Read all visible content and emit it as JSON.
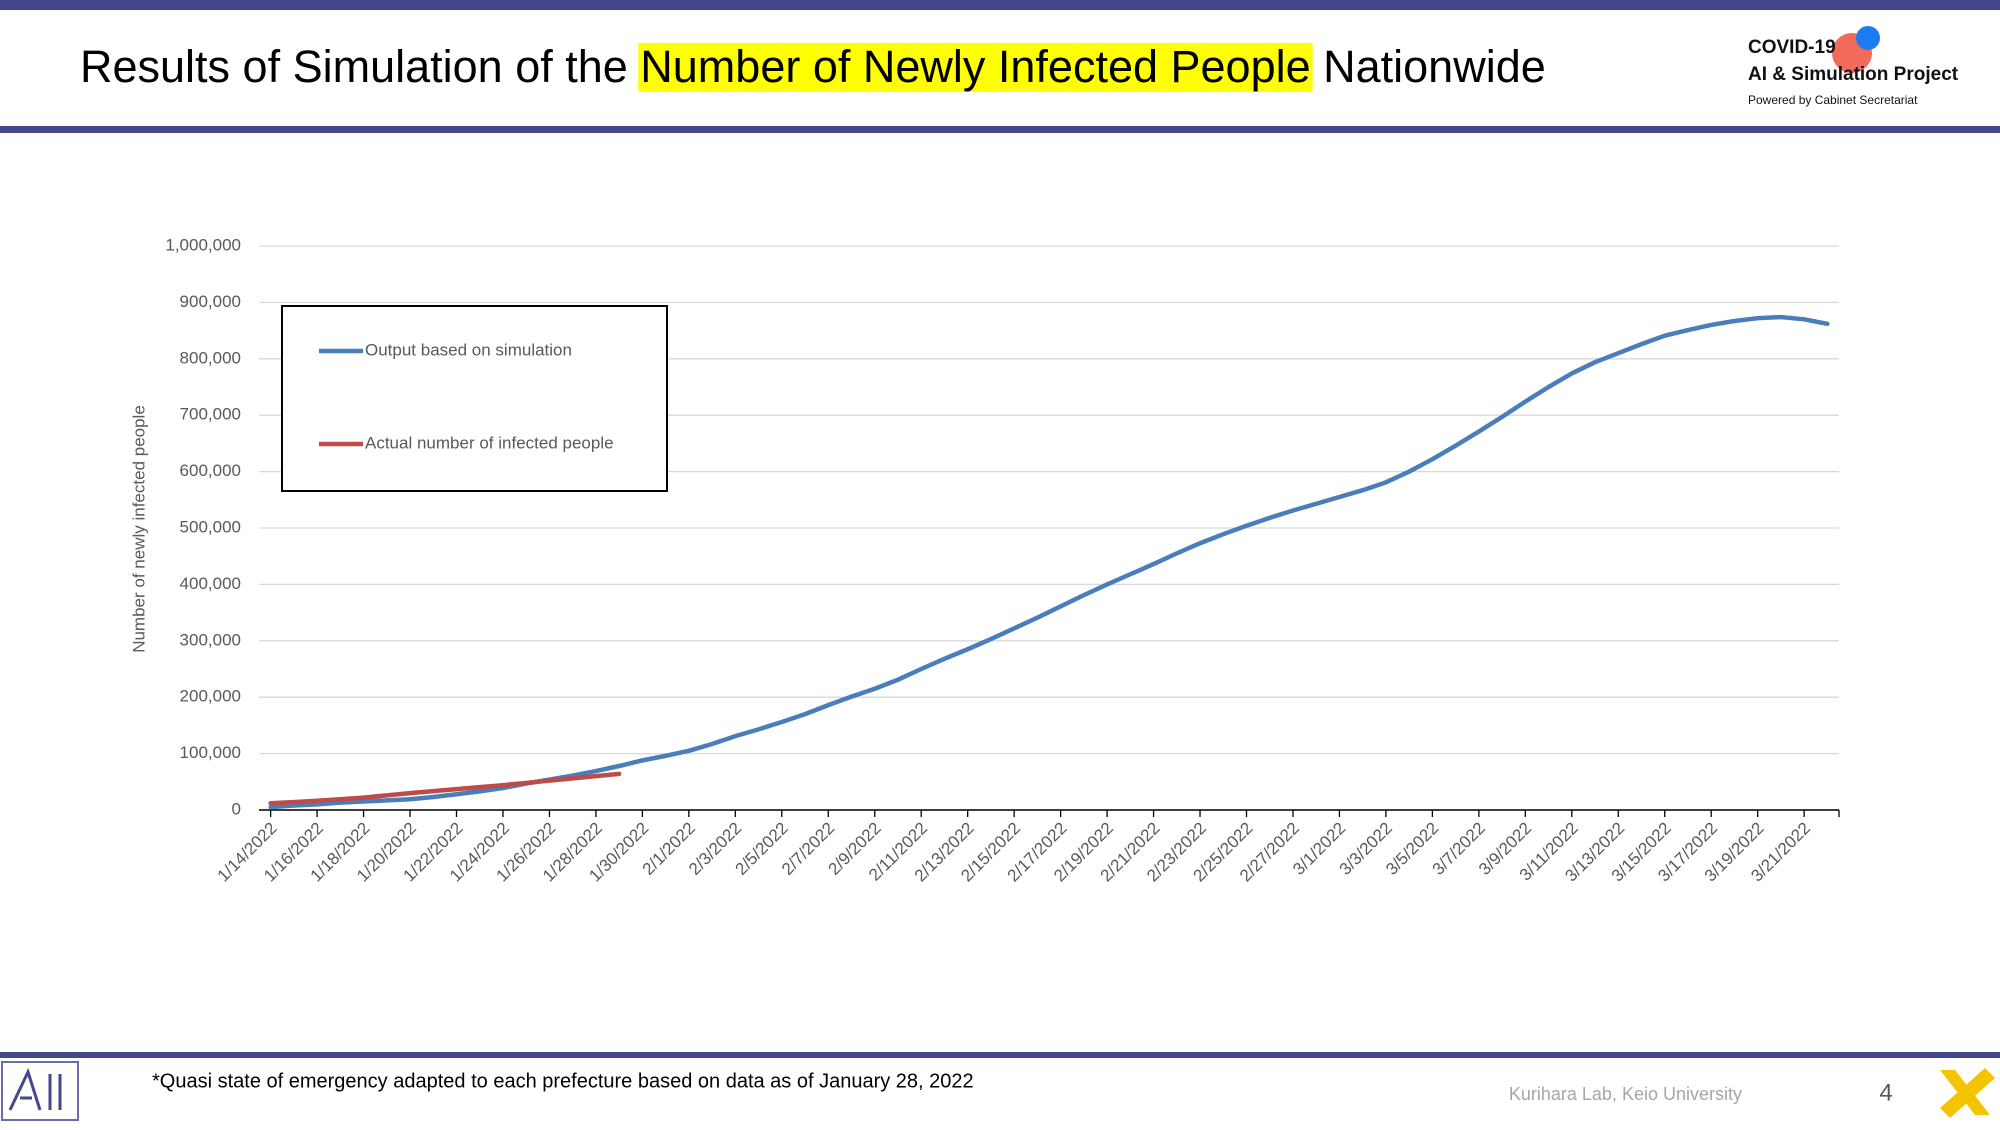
{
  "header": {
    "title_parts": [
      "Results of Simulation of the ",
      "Number of Newly Infected People",
      " Nationwide"
    ],
    "logo": {
      "line1": "COVID-19",
      "line2": "AI & Simulation Project",
      "line3": "Powered by Cabinet Secretariat"
    }
  },
  "footer": {
    "note": "*Quasi state of emergency adapted to each prefecture based on data as of January 28, 2022",
    "credit": "Kurihara Lab, Keio University",
    "page": "4"
  },
  "chart_data": {
    "type": "line",
    "y_label": "Number of newly infected people",
    "categories": [
      "1/14/2022",
      null,
      "1/16/2022",
      null,
      "1/18/2022",
      null,
      "1/20/2022",
      null,
      "1/22/2022",
      null,
      "1/24/2022",
      null,
      "1/26/2022",
      null,
      "1/28/2022",
      null,
      "1/30/2022",
      null,
      "2/1/2022",
      null,
      "2/3/2022",
      null,
      "2/5/2022",
      null,
      "2/7/2022",
      null,
      "2/9/2022",
      null,
      "2/11/2022",
      null,
      "2/13/2022",
      null,
      "2/15/2022",
      null,
      "2/17/2022",
      null,
      "2/19/2022",
      null,
      "2/21/2022",
      null,
      "2/23/2022",
      null,
      "2/25/2022",
      null,
      "2/27/2022",
      null,
      "3/1/2022",
      null,
      "3/3/2022",
      null,
      "3/5/2022",
      null,
      "3/7/2022",
      null,
      "3/9/2022",
      null,
      "3/11/2022",
      null,
      "3/13/2022",
      null,
      "3/15/2022",
      null,
      "3/17/2022",
      null,
      "3/19/2022",
      null,
      "3/21/2022",
      null
    ],
    "series": [
      {
        "name": "Output based on simulation",
        "color": "#4a7ebb",
        "values": [
          5000,
          8000,
          10000,
          13000,
          15000,
          17000,
          19000,
          23000,
          28000,
          33000,
          39000,
          47000,
          54000,
          61000,
          69000,
          78000,
          88000,
          96000,
          105000,
          117000,
          131000,
          143000,
          156000,
          170000,
          186000,
          201000,
          215000,
          231000,
          250000,
          268000,
          285000,
          303000,
          322000,
          341000,
          361000,
          381000,
          400000,
          418000,
          436000,
          455000,
          473000,
          489000,
          504000,
          518000,
          531000,
          543000,
          555000,
          567000,
          581000,
          600000,
          622000,
          646000,
          671000,
          697000,
          724000,
          750000,
          774000,
          794000,
          810000,
          826000,
          841000,
          851000,
          860000,
          867000,
          872000,
          874000,
          870000,
          862000
        ]
      },
      {
        "name": "Actual number of infected people",
        "color": "#be4b48",
        "values": [
          12000,
          14000,
          16500,
          19000,
          22000,
          26000,
          30000,
          33500,
          37000,
          40500,
          44000,
          48000,
          52000,
          56000,
          60000,
          64000,
          null,
          null,
          null,
          null,
          null,
          null,
          null,
          null,
          null,
          null,
          null,
          null,
          null,
          null,
          null,
          null,
          null,
          null,
          null,
          null,
          null,
          null,
          null,
          null,
          null,
          null,
          null,
          null,
          null,
          null,
          null,
          null,
          null,
          null,
          null,
          null,
          null,
          null,
          null,
          null,
          null,
          null,
          null,
          null,
          null,
          null,
          null,
          null,
          null,
          null,
          null,
          null
        ]
      }
    ],
    "ylim": [
      0,
      1000000
    ],
    "yticks": [
      0,
      {
        "value": 100000,
        "label": "100,000"
      },
      {
        "value": 200000,
        "label": "200,000"
      },
      {
        "value": 300000,
        "label": "300,000"
      },
      {
        "value": 400000,
        "label": "400,000"
      },
      {
        "value": 500000,
        "label": "500,000"
      },
      {
        "value": 600000,
        "label": "600,000"
      },
      {
        "value": 700000,
        "label": "700,000"
      },
      {
        "value": 800000,
        "label": "800,000"
      },
      {
        "value": 900000,
        "label": "900,000"
      },
      {
        "value": 1000000,
        "label": "1,000,000"
      }
    ],
    "grid": true,
    "legend": "upper left"
  }
}
